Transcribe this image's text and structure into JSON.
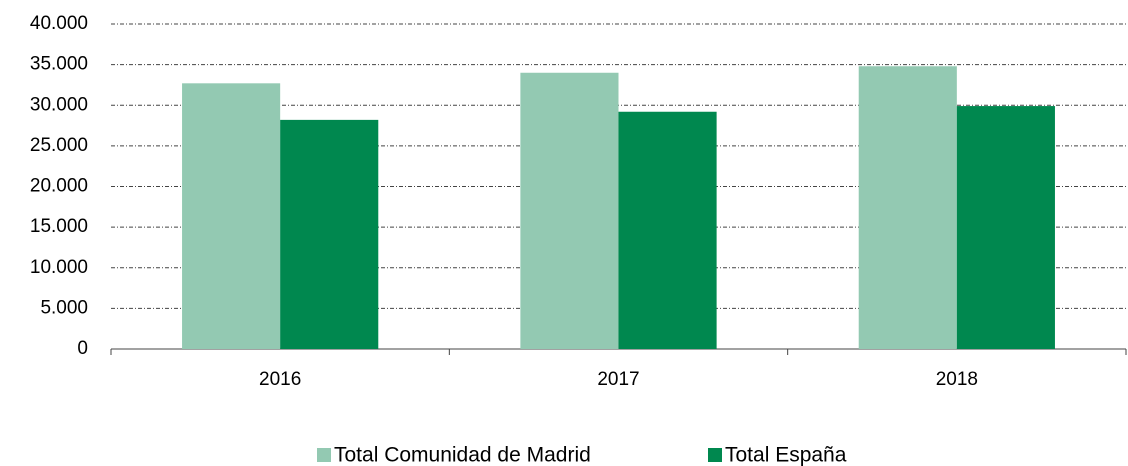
{
  "chart_data": {
    "type": "bar",
    "categories": [
      "2016",
      "2017",
      "2018"
    ],
    "series": [
      {
        "name": "Total Comunidad de Madrid",
        "color": "#93c9b2",
        "values": [
          32700,
          34000,
          34800
        ]
      },
      {
        "name": "Total España",
        "color": "#00884f",
        "values": [
          28200,
          29200,
          29900
        ]
      }
    ],
    "ylim": [
      0,
      40000
    ],
    "yticks": [
      0,
      {
        "value": 5000,
        "label": "5.000"
      },
      {
        "value": 10000,
        "label": "10.000"
      },
      {
        "value": 15000,
        "label": "15.000"
      },
      {
        "value": 20000,
        "label": "20.000"
      },
      {
        "value": 25000,
        "label": "25.000"
      },
      {
        "value": 30000,
        "label": "30.000"
      },
      {
        "value": 35000,
        "label": "35.000"
      },
      {
        "value": 40000,
        "label": "40.000"
      }
    ],
    "grid": true,
    "legend": "bottom"
  }
}
